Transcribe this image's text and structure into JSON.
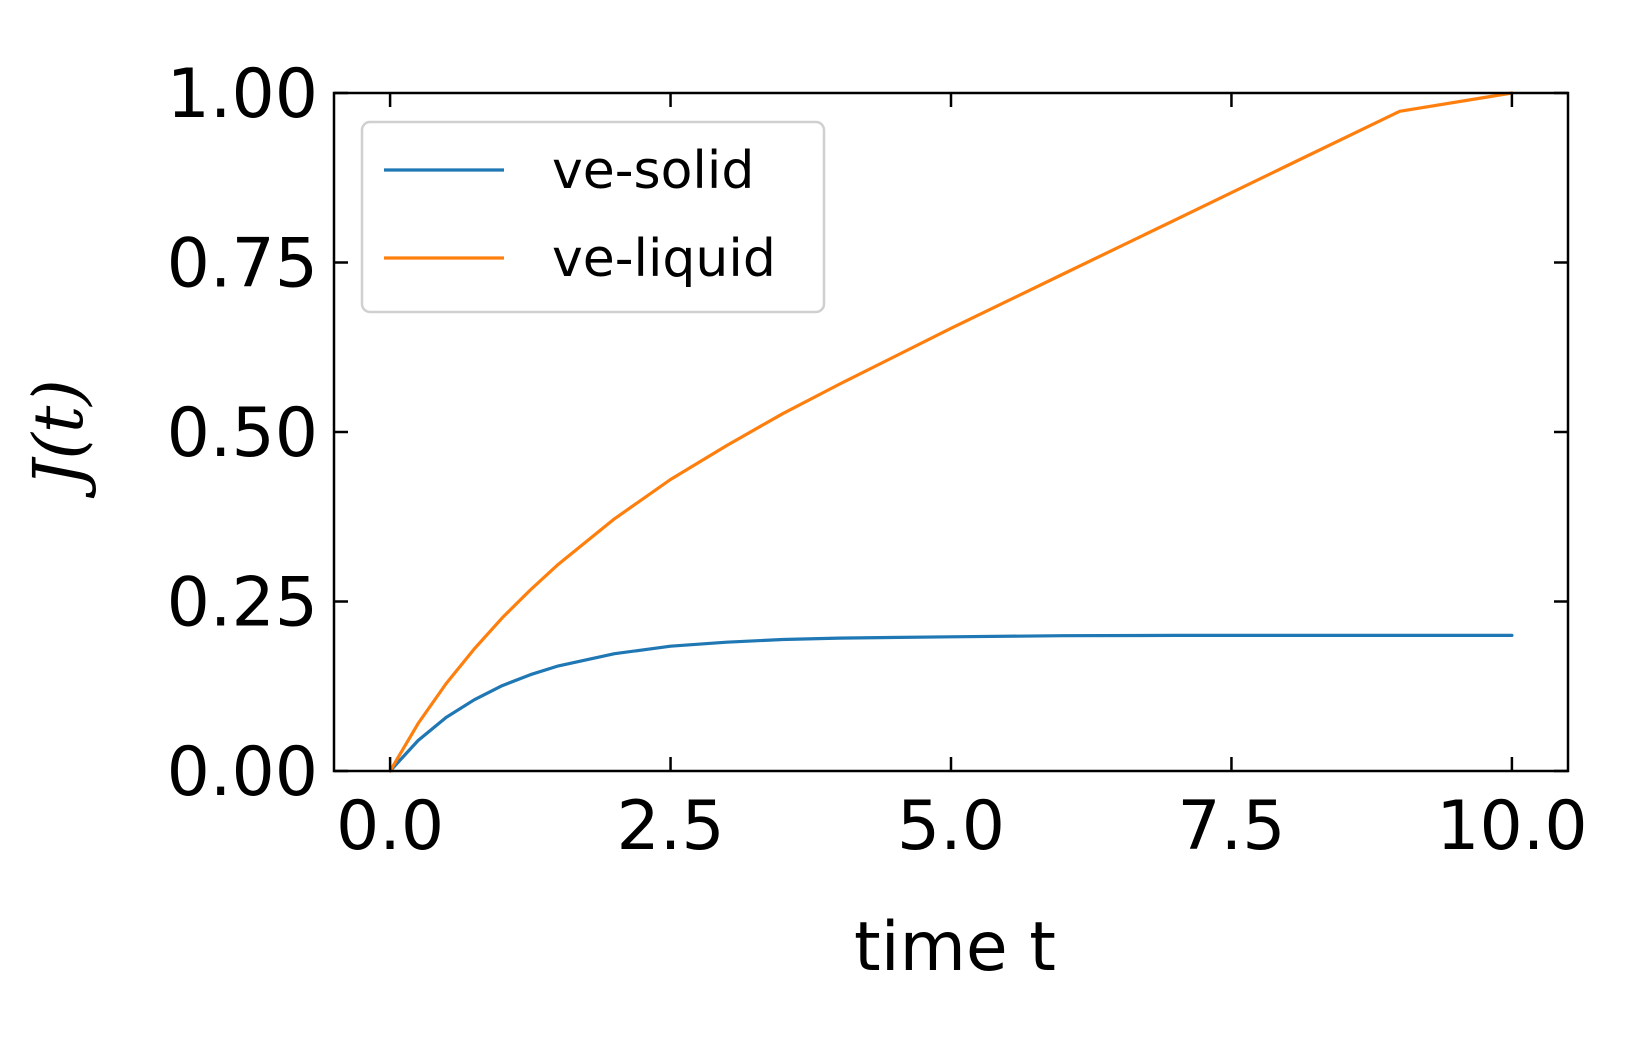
{
  "chart_data": {
    "type": "line",
    "xlabel": "time t",
    "ylabel": "J(t)",
    "xlim": [
      -0.5,
      10.5
    ],
    "ylim": [
      0.0,
      1.0
    ],
    "xticks": [
      0.0,
      2.5,
      5.0,
      7.5,
      10.0
    ],
    "xtick_labels": [
      "0.0",
      "2.5",
      "5.0",
      "7.5",
      "10.0"
    ],
    "yticks": [
      0.0,
      0.25,
      0.5,
      0.75,
      1.0
    ],
    "ytick_labels": [
      "0.00",
      "0.25",
      "0.50",
      "0.75",
      "1.00"
    ],
    "grid": false,
    "legend_position": "top-left",
    "series": [
      {
        "name": "ve-solid",
        "color": "#1f77b4",
        "x": [
          0,
          0.25,
          0.5,
          0.75,
          1,
          1.25,
          1.5,
          2,
          2.5,
          3,
          3.5,
          4,
          5,
          6,
          7,
          8,
          9,
          10
        ],
        "y": [
          0,
          0.045,
          0.079,
          0.105,
          0.126,
          0.142,
          0.155,
          0.173,
          0.184,
          0.19,
          0.194,
          0.196,
          0.198,
          0.1995,
          0.2,
          0.2,
          0.2,
          0.2
        ]
      },
      {
        "name": "ve-liquid",
        "color": "#ff7f0e",
        "x": [
          0,
          0.25,
          0.5,
          0.75,
          1,
          1.25,
          1.5,
          2,
          2.5,
          3,
          3.5,
          4,
          5,
          6,
          7,
          8,
          9,
          10
        ],
        "y": [
          0,
          0.07,
          0.129,
          0.18,
          0.226,
          0.267,
          0.305,
          0.372,
          0.43,
          0.48,
          0.527,
          0.57,
          0.653,
          0.733,
          0.813,
          0.893,
          0.973,
          1.0
        ]
      }
    ]
  }
}
